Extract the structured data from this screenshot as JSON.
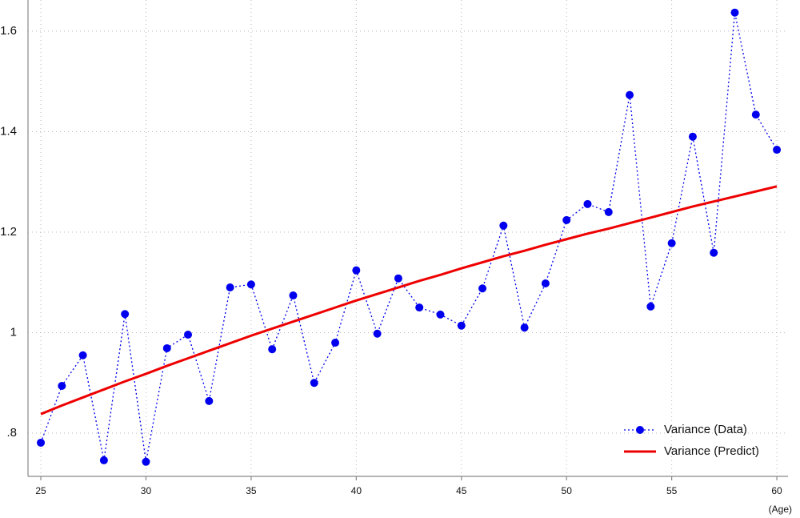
{
  "chart_data": {
    "type": "line",
    "x_label": "(Age)",
    "x": [
      25,
      26,
      27,
      28,
      29,
      30,
      31,
      32,
      33,
      34,
      35,
      36,
      37,
      38,
      39,
      40,
      41,
      42,
      43,
      44,
      45,
      46,
      47,
      48,
      49,
      50,
      51,
      52,
      53,
      54,
      55,
      56,
      57,
      58,
      59,
      60
    ],
    "series": [
      {
        "name": "Variance (Data)",
        "color": "#0000ee",
        "style": "dotted-markers",
        "values": [
          0.781,
          0.894,
          0.955,
          0.746,
          1.037,
          0.743,
          0.969,
          0.996,
          0.864,
          1.09,
          1.096,
          0.967,
          1.074,
          0.9,
          0.98,
          1.124,
          0.998,
          1.108,
          1.05,
          1.036,
          1.014,
          1.088,
          1.213,
          1.01,
          1.098,
          1.224,
          1.256,
          1.24,
          1.473,
          1.052,
          1.178,
          1.39,
          1.159,
          1.637,
          1.434,
          1.364
        ]
      },
      {
        "name": "Variance (Predict)",
        "color": "#ee0000",
        "style": "solid",
        "values": [
          0.838,
          0.855,
          0.871,
          0.887,
          0.903,
          0.918,
          0.934,
          0.949,
          0.964,
          0.979,
          0.994,
          1.008,
          1.022,
          1.036,
          1.05,
          1.064,
          1.077,
          1.09,
          1.103,
          1.115,
          1.128,
          1.14,
          1.152,
          1.163,
          1.175,
          1.186,
          1.197,
          1.207,
          1.218,
          1.229,
          1.24,
          1.251,
          1.261,
          1.271,
          1.281,
          1.291
        ]
      }
    ],
    "xlim": [
      24.39,
      60.53
    ],
    "xticks": [
      25,
      30,
      35,
      40,
      45,
      50,
      55,
      60
    ],
    "ylim": [
      0.714,
      1.662
    ],
    "yticks": [
      {
        "value": 0.8,
        "label": ".8"
      },
      1,
      1.2,
      1.4,
      1.6
    ],
    "grid": true,
    "legend": "lower-right"
  }
}
